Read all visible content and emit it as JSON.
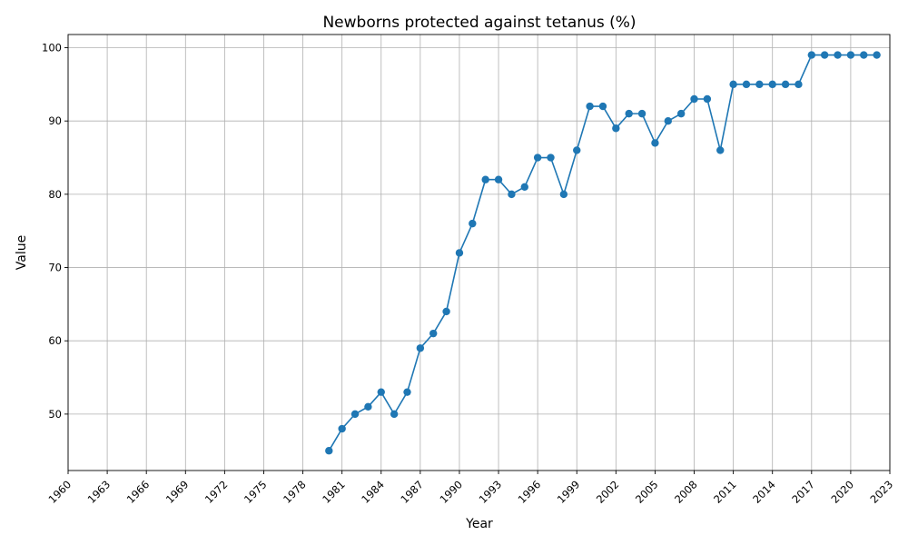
{
  "chart_data": {
    "type": "line",
    "title": "Newborns protected against tetanus (%)",
    "xlabel": "Year",
    "ylabel": "Value",
    "xlim": [
      1960,
      2023
    ],
    "ylim": [
      42.3,
      101.8
    ],
    "x_ticks": [
      1960,
      1963,
      1966,
      1969,
      1972,
      1975,
      1978,
      1981,
      1984,
      1987,
      1990,
      1993,
      1996,
      1999,
      2002,
      2005,
      2008,
      2011,
      2014,
      2017,
      2020,
      2023
    ],
    "y_ticks": [
      50,
      60,
      70,
      80,
      90,
      100
    ],
    "grid": true,
    "color": "#1f77b4",
    "series": [
      {
        "x": [
          1980,
          1981,
          1982,
          1983,
          1984,
          1985,
          1986,
          1987,
          1988,
          1989,
          1990,
          1991,
          1992,
          1993,
          1994,
          1995,
          1996,
          1997,
          1998,
          1999,
          2000,
          2001,
          2002,
          2003,
          2004,
          2005,
          2006,
          2007,
          2008,
          2009,
          2010,
          2011,
          2012,
          2013,
          2014,
          2015,
          2016,
          2017,
          2018,
          2019,
          2020,
          2021,
          2022
        ],
        "values": [
          45,
          48,
          50,
          51,
          53,
          50,
          53,
          59,
          61,
          64,
          72,
          76,
          82,
          82,
          80,
          81,
          85,
          85,
          80,
          86,
          92,
          92,
          89,
          91,
          91,
          87,
          90,
          91,
          93,
          93,
          86,
          95,
          95,
          95,
          95,
          95,
          95,
          99,
          99,
          99,
          99,
          99,
          99
        ]
      }
    ]
  }
}
